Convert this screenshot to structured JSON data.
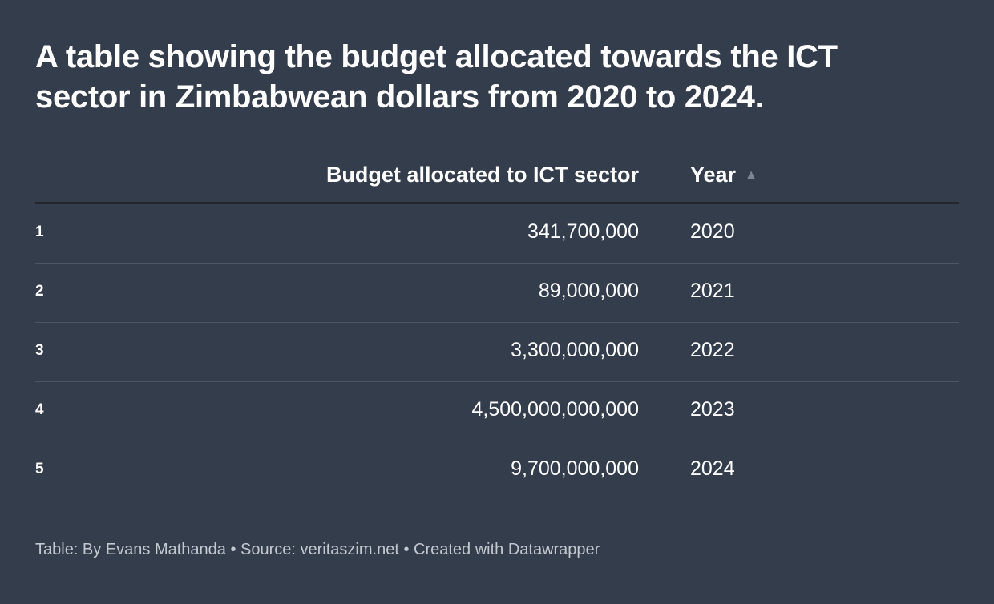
{
  "title": "A table showing the budget allocated towards the ICT sector in Zimbabwean dollars from 2020 to 2024.",
  "table": {
    "headers": {
      "budget": "Budget allocated to ICT sector",
      "year": "Year",
      "sort_indicator": "▲"
    },
    "rows": [
      {
        "index": "1",
        "budget": "341,700,000",
        "year": "2020"
      },
      {
        "index": "2",
        "budget": "89,000,000",
        "year": "2021"
      },
      {
        "index": "3",
        "budget": "3,300,000,000",
        "year": "2022"
      },
      {
        "index": "4",
        "budget": "4,500,000,000,000",
        "year": "2023"
      },
      {
        "index": "5",
        "budget": "9,700,000,000",
        "year": "2024"
      }
    ]
  },
  "footer": "Table: By Evans Mathanda • Source: veritaszim.net • Created with Datawrapper",
  "colors": {
    "background": "#333d4c",
    "text": "#ffffff",
    "footer": "#c3c8d0"
  }
}
